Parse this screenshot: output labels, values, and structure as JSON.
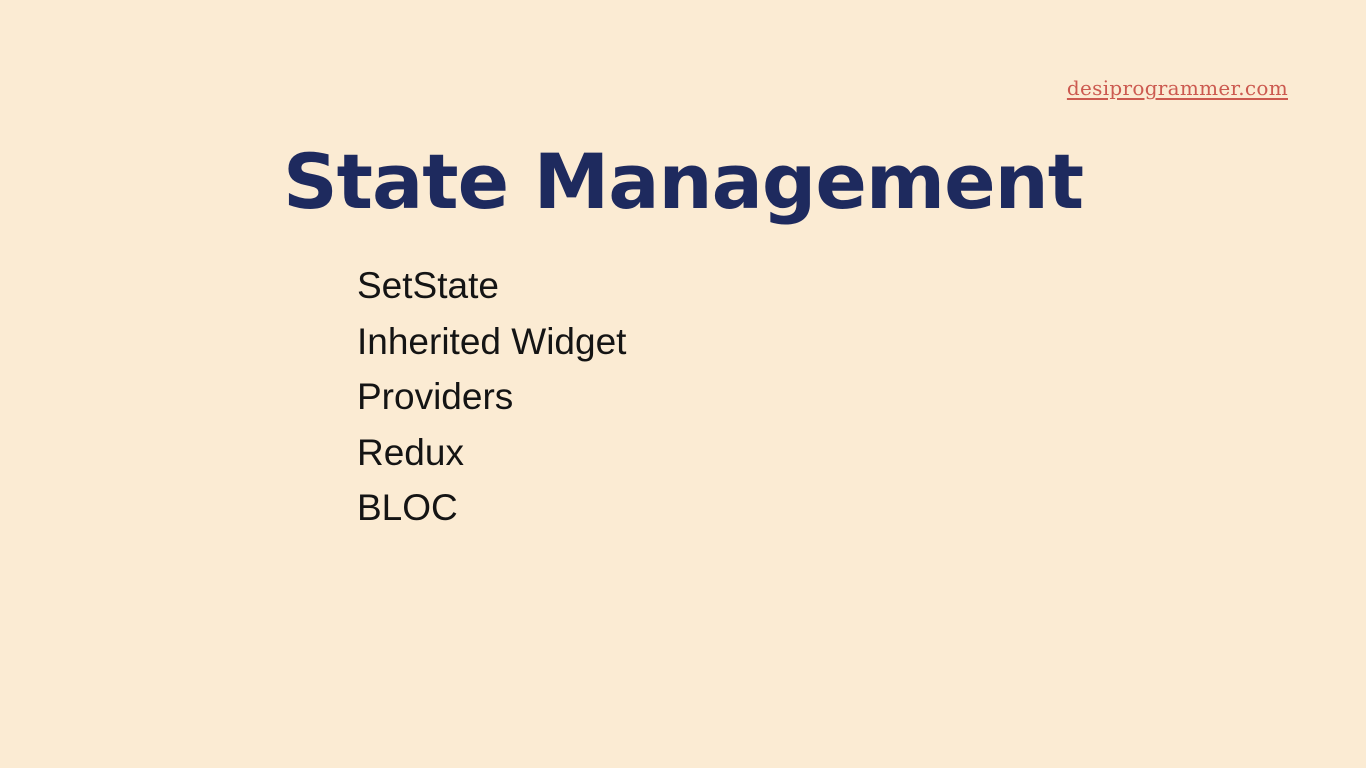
{
  "slide": {
    "site_link": "desiprogrammer.com",
    "title": "State Management",
    "topics": [
      {
        "label": "SetState"
      },
      {
        "label": "Inherited Widget"
      },
      {
        "label": "Providers"
      },
      {
        "label": "Redux"
      },
      {
        "label": "BLOC"
      }
    ]
  },
  "colors": {
    "background": "#fbebd3",
    "title": "#1e2a5e",
    "link": "#cc5a50",
    "text": "#141414"
  }
}
